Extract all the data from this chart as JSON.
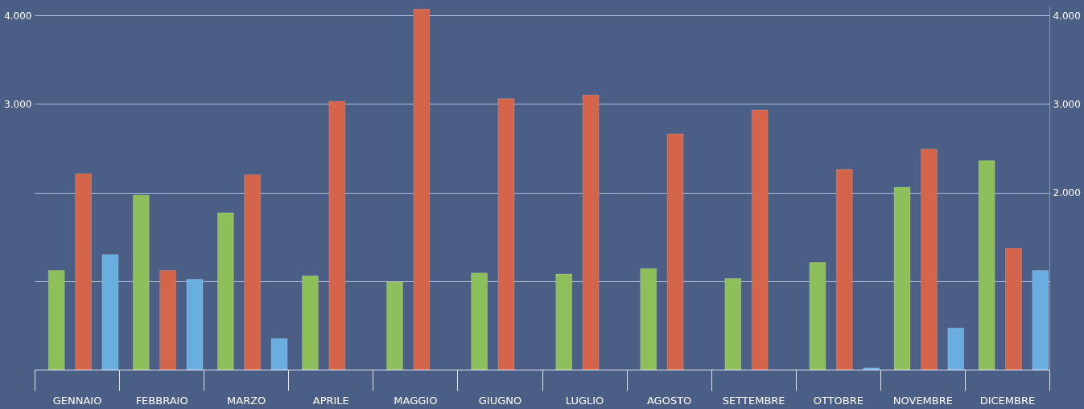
{
  "chart_data": {
    "type": "bar",
    "categories": [
      "GENNAIO",
      "FEBBRAIO",
      "MARZO",
      "APRILE",
      "MAGGIO",
      "GIUGNO",
      "LUGLIO",
      "AGOSTO",
      "SETTEMBRE",
      "OTTOBRE",
      "NOVEMBRE",
      "DICEMBRE"
    ],
    "series": [
      {
        "color": "#8fbf5a",
        "values": [
          1120,
          1970,
          1770,
          1060,
          990,
          1090,
          1080,
          1140,
          1030,
          1210,
          2060,
          2360
        ]
      },
      {
        "color": "#d5654a",
        "values": [
          2210,
          1120,
          2200,
          3030,
          4070,
          3060,
          3100,
          2660,
          2930,
          2260,
          2490,
          1370
        ]
      },
      {
        "color": "#6aaee0",
        "values": [
          1300,
          1020,
          350,
          null,
          null,
          null,
          null,
          null,
          null,
          20,
          470,
          1120
        ]
      }
    ],
    "ylim": [
      0,
      4100
    ],
    "yticks": [
      {
        "value": 1000,
        "label": null
      },
      {
        "value": 2000,
        "label": null
      },
      {
        "value": 3000,
        "label": "3.000"
      },
      {
        "value": 4000,
        "label": "4.000"
      }
    ],
    "y2lim": [
      0,
      4100
    ],
    "y2ticks": [
      {
        "value": 2000,
        "label": "2.000"
      },
      {
        "value": 3000,
        "label": "3.000"
      },
      {
        "value": 4000,
        "label": "4.000"
      }
    ],
    "grid": "y",
    "legend": false
  }
}
